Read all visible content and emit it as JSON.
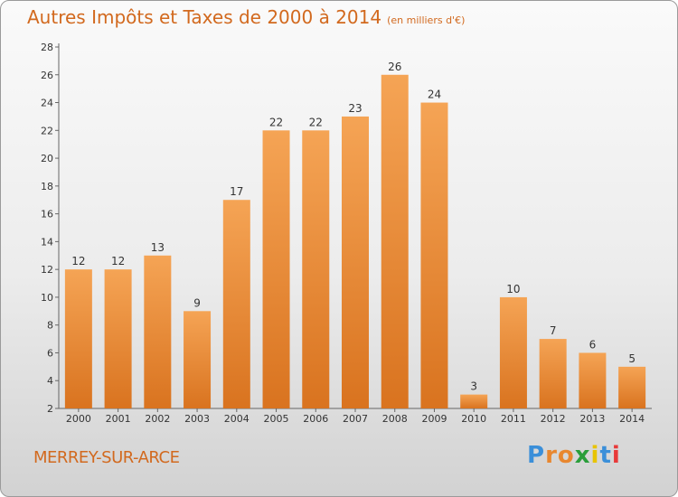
{
  "chart_data": {
    "type": "bar",
    "title": "Autres Impôts et Taxes de 2000 à 2014",
    "subtitle": "(en milliers d'€)",
    "categories": [
      "2000",
      "2001",
      "2002",
      "2003",
      "2004",
      "2005",
      "2006",
      "2007",
      "2008",
      "2009",
      "2010",
      "2011",
      "2012",
      "2013",
      "2014"
    ],
    "values": [
      12,
      12,
      13,
      9,
      17,
      22,
      22,
      23,
      26,
      24,
      3,
      10,
      7,
      6,
      5
    ],
    "ylim": [
      2,
      28
    ],
    "yticks": [
      2,
      4,
      6,
      8,
      10,
      12,
      14,
      16,
      18,
      20,
      22,
      24,
      26,
      28
    ],
    "grid": false,
    "bar_color": "#e8872f"
  },
  "commune": "MERREY-SUR-ARCE",
  "logo": {
    "letters": [
      "P",
      "r",
      "o",
      "x",
      "i",
      "t",
      "i"
    ],
    "colors": [
      "#3b8fd9",
      "#e8872f",
      "#e8872f",
      "#2a9e3a",
      "#e8c400",
      "#3b8fd9",
      "#e83a3a"
    ]
  }
}
